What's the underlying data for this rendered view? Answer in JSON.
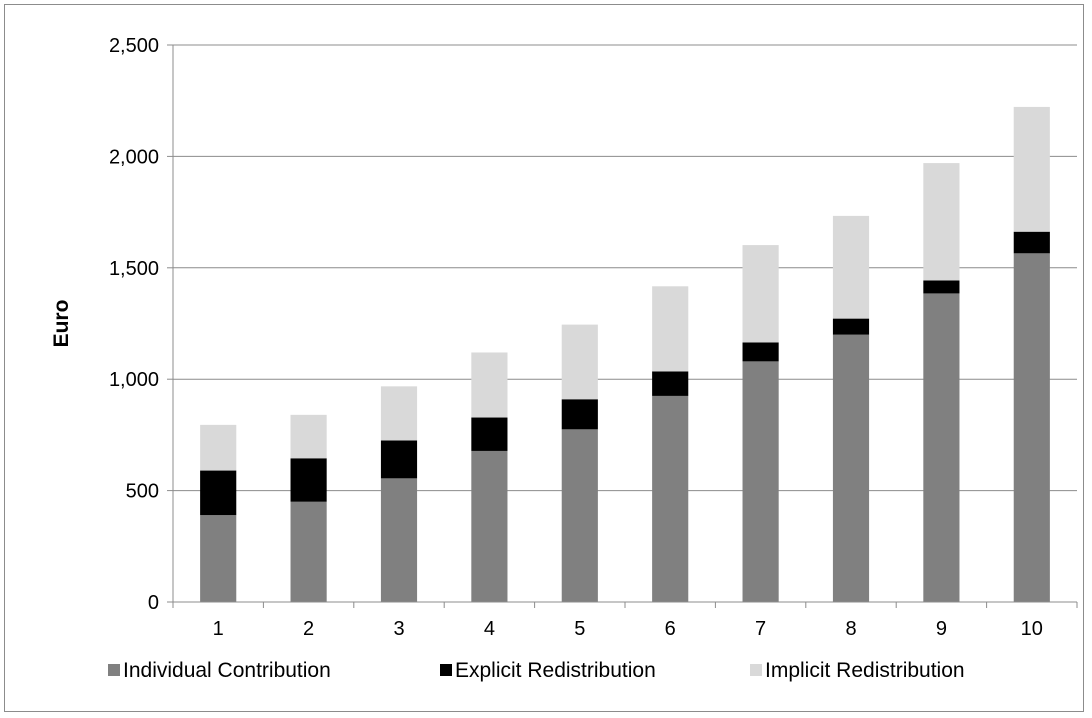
{
  "chart_data": {
    "type": "bar",
    "stacked": true,
    "categories": [
      "1",
      "2",
      "3",
      "4",
      "5",
      "6",
      "7",
      "8",
      "9",
      "10"
    ],
    "series": [
      {
        "name": "Individual Contribution",
        "color": "#808080",
        "values": [
          390,
          450,
          555,
          678,
          775,
          925,
          1080,
          1200,
          1385,
          1565
        ]
      },
      {
        "name": "Explicit Redistribution",
        "color": "#000000",
        "values": [
          200,
          195,
          170,
          150,
          135,
          110,
          85,
          72,
          58,
          97
        ]
      },
      {
        "name": "Implicit Redistribution",
        "color": "#d9d9d9",
        "values": [
          205,
          195,
          243,
          292,
          335,
          382,
          437,
          461,
          527,
          560
        ]
      }
    ],
    "xlabel": "",
    "ylabel": "Euro",
    "ylim": [
      0,
      2500
    ],
    "yticks": [
      "0",
      "500",
      "1,000",
      "1,500",
      "2,000",
      "2,500"
    ],
    "ytick_values": [
      0,
      500,
      1000,
      1500,
      2000,
      2500
    ],
    "grid": true,
    "legend_position": "bottom"
  }
}
